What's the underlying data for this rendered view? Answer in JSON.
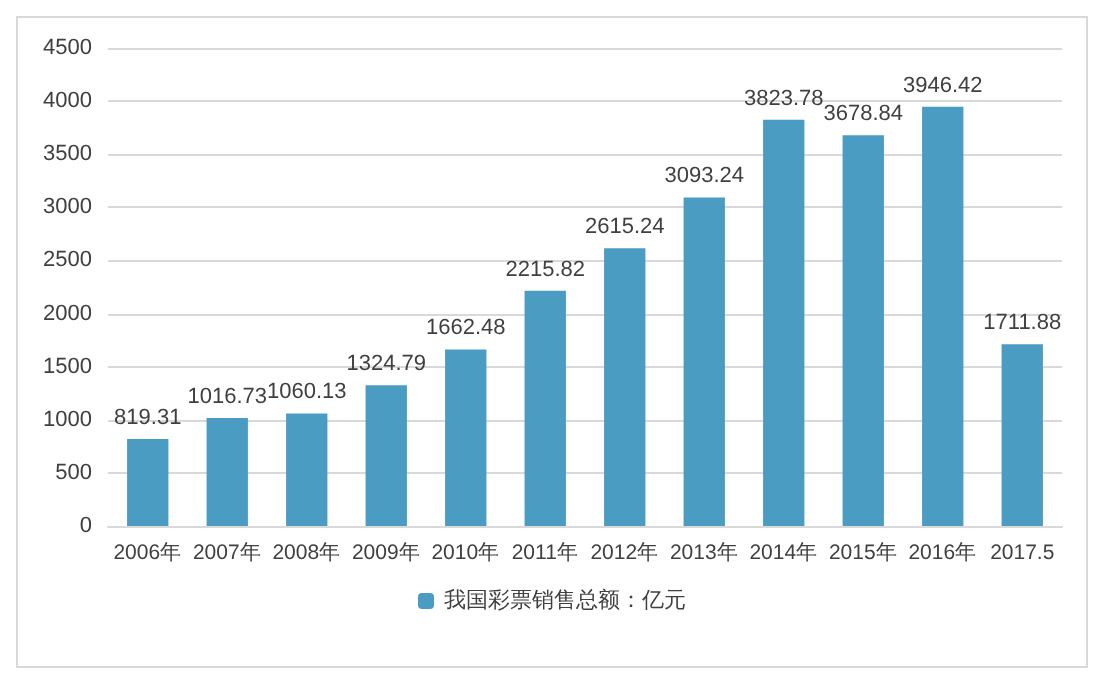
{
  "chart_data": {
    "type": "bar",
    "categories": [
      "2006年",
      "2007年",
      "2008年",
      "2009年",
      "2010年",
      "2011年",
      "2012年",
      "2013年",
      "2014年",
      "2015年",
      "2016年",
      "2017.5"
    ],
    "series": [
      {
        "name": "我国彩票销售总额：亿元",
        "color": "#4a9cc2",
        "values": [
          819.31,
          1016.73,
          1060.13,
          1324.79,
          1662.48,
          2215.82,
          2615.24,
          3093.24,
          3823.78,
          3678.84,
          3946.42,
          1711.88
        ]
      }
    ],
    "ylim": [
      0,
      4500
    ],
    "yticks": [
      0,
      500,
      1000,
      1500,
      2000,
      2500,
      3000,
      3500,
      4000,
      4500
    ],
    "grid": "y",
    "legend": "bottom",
    "data_labels": true
  }
}
